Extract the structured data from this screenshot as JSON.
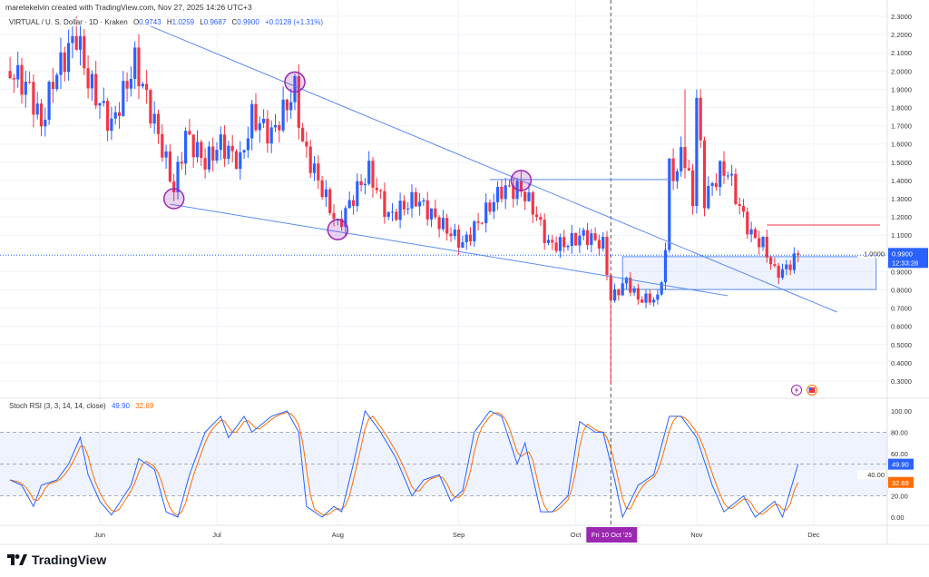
{
  "header": {
    "credit": "maretekelvin created with TradingView.com, Nov 27, 2025 14:26 UTC+3",
    "symbol": "VIRTUAL / U. S. Dollar · 1D · Kraken",
    "open_label": "O",
    "open": "0.9743",
    "high_label": "H",
    "high": "1.0259",
    "low_label": "L",
    "low": "0.9687",
    "close_label": "C",
    "close": "0.9900",
    "change": "+0.0128 (+1.31%)"
  },
  "price_tag": {
    "value": "0.9900",
    "countdown": "12:33:28"
  },
  "rsi_legend": {
    "name": "Stoch RSI (3, 3, 14, 14, close)",
    "k": "49.90",
    "d": "32.69"
  },
  "crosshair_date": "Fri 10 Oct '25",
  "logo": {
    "text": "TradingView"
  },
  "colors": {
    "up": "#2962ff",
    "down": "#f23645",
    "trendline": "#5b8def",
    "k_line": "#2962ff",
    "d_line": "#ff6d00",
    "highlight_circle": "#9c27b0",
    "resistance": "#f23645",
    "crosshair_tag": "#9c27b0"
  },
  "icons": [
    "lightning-event-icon",
    "us-flag-event-icon",
    "tradingview-logo-icon"
  ],
  "chart_data": [
    {
      "type": "candlestick",
      "xlim": [
        "2025-05-07",
        "2025-12-24"
      ],
      "ylim": [
        0.2,
        2.35
      ],
      "y_ticks": [
        "2.3000",
        "2.2000",
        "2.1000",
        "2.0000",
        "1.9000",
        "1.8000",
        "1.7000",
        "1.6000",
        "1.5000",
        "1.4000",
        "1.3000",
        "1.2000",
        "1.1000",
        "1.0000",
        "0.9000",
        "0.8000",
        "0.7000",
        "0.6000",
        "0.5000",
        "0.4000",
        "0.3000"
      ],
      "x_ticks": [
        [
          "2025-06-01",
          "Jun"
        ],
        [
          "2025-07-01",
          "Jul"
        ],
        [
          "2025-08-01",
          "Aug"
        ],
        [
          "2025-09-01",
          "Sep"
        ],
        [
          "2025-10-01",
          "Oct"
        ],
        [
          "2025-11-01",
          "Nov"
        ],
        [
          "2025-12-01",
          "Dec"
        ]
      ],
      "close_path": [
        [
          "2025-05-09",
          2.0
        ],
        [
          "2025-05-14",
          1.9
        ],
        [
          "2025-05-17",
          1.7
        ],
        [
          "2025-05-20",
          1.95
        ],
        [
          "2025-05-26",
          2.2
        ],
        [
          "2025-05-29",
          1.95
        ],
        [
          "2025-06-04",
          1.7
        ],
        [
          "2025-06-10",
          2.05
        ],
        [
          "2025-06-16",
          1.65
        ],
        [
          "2025-06-20",
          1.35
        ],
        [
          "2025-06-23",
          1.65
        ],
        [
          "2025-06-28",
          1.5
        ],
        [
          "2025-07-02",
          1.6
        ],
        [
          "2025-07-07",
          1.5
        ],
        [
          "2025-07-10",
          1.75
        ],
        [
          "2025-07-15",
          1.65
        ],
        [
          "2025-07-21",
          1.9
        ],
        [
          "2025-07-23",
          1.6
        ],
        [
          "2025-07-28",
          1.35
        ],
        [
          "2025-08-01",
          1.15
        ],
        [
          "2025-08-06",
          1.35
        ],
        [
          "2025-08-09",
          1.45
        ],
        [
          "2025-08-14",
          1.2
        ],
        [
          "2025-08-21",
          1.3
        ],
        [
          "2025-08-28",
          1.15
        ],
        [
          "2025-09-02",
          1.05
        ],
        [
          "2025-09-07",
          1.2
        ],
        [
          "2025-09-12",
          1.35
        ],
        [
          "2025-09-17",
          1.35
        ],
        [
          "2025-09-20",
          1.25
        ],
        [
          "2025-09-24",
          1.05
        ],
        [
          "2025-09-28",
          1.05
        ],
        [
          "2025-10-03",
          1.1
        ],
        [
          "2025-10-08",
          1.05
        ],
        [
          "2025-10-10",
          0.75
        ],
        [
          "2025-10-14",
          0.85
        ],
        [
          "2025-10-17",
          0.75
        ],
        [
          "2025-10-22",
          0.75
        ],
        [
          "2025-10-24",
          1.0
        ],
        [
          "2025-10-25",
          1.5
        ],
        [
          "2025-10-27",
          1.4
        ],
        [
          "2025-10-28",
          1.6
        ],
        [
          "2025-10-31",
          1.3
        ],
        [
          "2025-11-01",
          1.85
        ],
        [
          "2025-11-03",
          1.3
        ],
        [
          "2025-11-07",
          1.45
        ],
        [
          "2025-11-09",
          1.45
        ],
        [
          "2025-11-12",
          1.25
        ],
        [
          "2025-11-15",
          1.1
        ],
        [
          "2025-11-18",
          1.05
        ],
        [
          "2025-11-21",
          0.9
        ],
        [
          "2025-11-23",
          0.9
        ],
        [
          "2025-11-27",
          0.99
        ]
      ],
      "wick_extremes": [
        [
          "2025-10-10",
          "low",
          0.28
        ],
        [
          "2025-10-29",
          "high",
          1.9
        ],
        [
          "2025-11-02",
          "high",
          1.9
        ],
        [
          "2025-05-26",
          "high",
          2.3
        ]
      ],
      "last_price": 0.99,
      "drawings": {
        "trendlines": [
          {
            "from": [
              "2025-06-13",
              2.255
            ],
            "to": [
              "2025-12-07",
              0.678
            ]
          },
          {
            "from": [
              "2025-06-19",
              1.27
            ],
            "to": [
              "2025-11-09",
              0.768
            ]
          },
          {
            "from": [
              "2025-09-09",
              1.405
            ],
            "to": [
              "2025-10-25",
              1.405
            ]
          }
        ],
        "resistance_line": {
          "from": [
            "2025-11-19",
            1.156
          ],
          "to": [
            "2025-12-18",
            1.156
          ]
        },
        "zone": {
          "from": "2025-10-13",
          "to": "2025-12-17",
          "top": 0.982,
          "bottom": 0.802
        },
        "circles": [
          [
            "2025-06-20",
            1.3
          ],
          [
            "2025-07-21",
            1.94
          ],
          [
            "2025-08-01",
            1.13
          ],
          [
            "2025-09-17",
            1.4
          ]
        ],
        "vertical_marker": "2025-10-10"
      }
    },
    {
      "type": "line",
      "title": "Stoch RSI (3, 3, 14, 14, close)",
      "ylim": [
        0,
        100
      ],
      "y_ticks": [
        "100.00",
        "80.00",
        "60.00",
        "40.00",
        "20.00",
        "0.00"
      ],
      "bands": [
        20,
        50,
        80
      ],
      "k_path": [
        [
          "2025-05-09",
          35
        ],
        [
          "2025-05-12",
          30
        ],
        [
          "2025-05-15",
          10
        ],
        [
          "2025-05-17",
          30
        ],
        [
          "2025-05-21",
          35
        ],
        [
          "2025-05-24",
          50
        ],
        [
          "2025-05-27",
          75
        ],
        [
          "2025-05-29",
          40
        ],
        [
          "2025-06-01",
          15
        ],
        [
          "2025-06-04",
          2
        ],
        [
          "2025-06-09",
          30
        ],
        [
          "2025-06-11",
          55
        ],
        [
          "2025-06-15",
          45
        ],
        [
          "2025-06-18",
          5
        ],
        [
          "2025-06-21",
          0
        ],
        [
          "2025-06-24",
          40
        ],
        [
          "2025-06-28",
          80
        ],
        [
          "2025-07-02",
          95
        ],
        [
          "2025-07-04",
          75
        ],
        [
          "2025-07-08",
          95
        ],
        [
          "2025-07-10",
          80
        ],
        [
          "2025-07-15",
          95
        ],
        [
          "2025-07-19",
          100
        ],
        [
          "2025-07-22",
          80
        ],
        [
          "2025-07-24",
          10
        ],
        [
          "2025-07-28",
          0
        ],
        [
          "2025-07-31",
          10
        ],
        [
          "2025-08-02",
          5
        ],
        [
          "2025-08-05",
          50
        ],
        [
          "2025-08-08",
          100
        ],
        [
          "2025-08-12",
          80
        ],
        [
          "2025-08-16",
          55
        ],
        [
          "2025-08-20",
          20
        ],
        [
          "2025-08-23",
          35
        ],
        [
          "2025-08-27",
          40
        ],
        [
          "2025-08-30",
          15
        ],
        [
          "2025-09-02",
          25
        ],
        [
          "2025-09-05",
          80
        ],
        [
          "2025-09-09",
          100
        ],
        [
          "2025-09-12",
          95
        ],
        [
          "2025-09-16",
          50
        ],
        [
          "2025-09-18",
          70
        ],
        [
          "2025-09-22",
          5
        ],
        [
          "2025-09-25",
          5
        ],
        [
          "2025-09-29",
          20
        ],
        [
          "2025-10-02",
          90
        ],
        [
          "2025-10-06",
          80
        ],
        [
          "2025-10-08",
          80
        ],
        [
          "2025-10-11",
          35
        ],
        [
          "2025-10-13",
          0
        ],
        [
          "2025-10-17",
          30
        ],
        [
          "2025-10-21",
          40
        ],
        [
          "2025-10-25",
          95
        ],
        [
          "2025-10-28",
          95
        ],
        [
          "2025-11-01",
          75
        ],
        [
          "2025-11-05",
          30
        ],
        [
          "2025-11-08",
          5
        ],
        [
          "2025-11-13",
          20
        ],
        [
          "2025-11-16",
          0
        ],
        [
          "2025-11-21",
          15
        ],
        [
          "2025-11-23",
          0
        ],
        [
          "2025-11-27",
          49.9
        ]
      ],
      "k_last": 49.9,
      "d_last": 32.69
    }
  ]
}
